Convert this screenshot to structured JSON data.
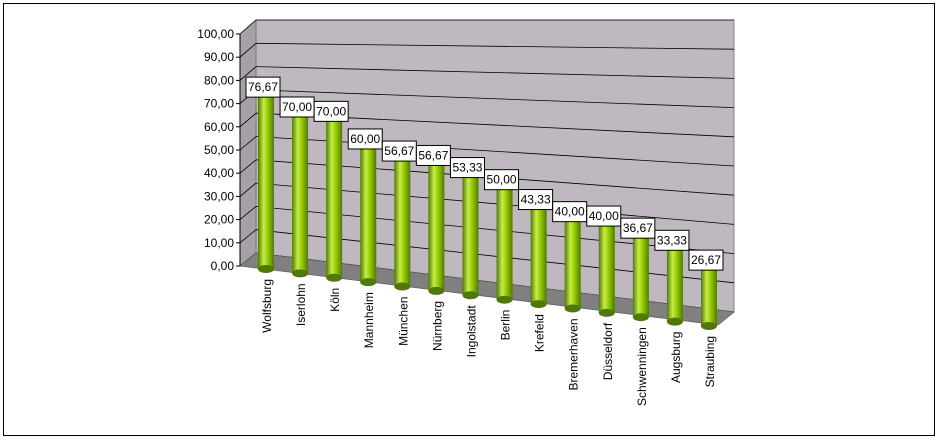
{
  "chart_data": {
    "type": "bar",
    "style": "3d-cylinder",
    "categories": [
      "Wolfsburg",
      "Iserlohn",
      "Köln",
      "Mannheim",
      "München",
      "Nürnberg",
      "Ingolstadt",
      "Berlin",
      "Krefeld",
      "Bremerhaven",
      "Düsseldorf",
      "Schwenningen",
      "Augsburg",
      "Straubing"
    ],
    "values": [
      76.67,
      70.0,
      70.0,
      60.0,
      56.67,
      56.67,
      53.33,
      50.0,
      43.33,
      40.0,
      40.0,
      36.67,
      33.33,
      26.67
    ],
    "data_labels": [
      "76,67",
      "70,00",
      "70,00",
      "60,00",
      "56,67",
      "56,67",
      "53,33",
      "50,00",
      "43,33",
      "40,00",
      "40,00",
      "36,67",
      "33,33",
      "26,67"
    ],
    "y_ticks": [
      "0,00",
      "10,00",
      "20,00",
      "30,00",
      "40,00",
      "50,00",
      "60,00",
      "70,00",
      "80,00",
      "90,00",
      "100,00"
    ],
    "ylim": [
      0,
      100
    ],
    "grid": true,
    "legend": "none",
    "title": "",
    "xlabel": "",
    "ylabel": "",
    "colors": {
      "bar_main": "#9acd00",
      "bar_light": "#c6ec4a",
      "bar_dark": "#4f7a00",
      "bar_top": "#b3e234",
      "wall": "#c0b8c0",
      "side_wall": "#a8a0a8",
      "floor": "#808080",
      "floor_edge": "#606060"
    }
  }
}
